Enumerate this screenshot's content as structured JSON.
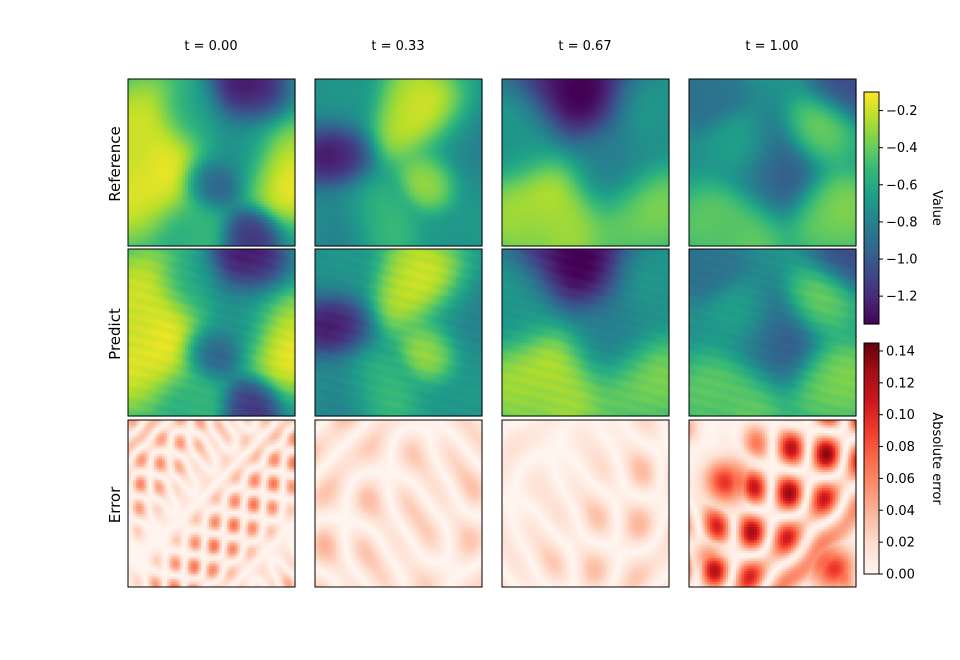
{
  "figure": {
    "column_titles": [
      "t = 0.00",
      "t = 0.33",
      "t = 0.67",
      "t = 1.00"
    ],
    "row_labels": [
      "Reference",
      "Predict",
      "Error"
    ]
  },
  "chart_data": {
    "type": "heatmap",
    "panels_grid": {
      "rows": 3,
      "cols": 4
    },
    "axes_ticks_visible": false,
    "colorbars": [
      {
        "name": "value",
        "label": "Value",
        "colormap": "viridis",
        "range": [
          -1.35,
          -0.1
        ],
        "ticks": [
          -0.2,
          -0.4,
          -0.6,
          -0.8,
          -1.0,
          -1.2
        ],
        "tick_labels": [
          "−0.2",
          "−0.4",
          "−0.6",
          "−0.8",
          "−1.0",
          "−1.2"
        ],
        "applies_to_rows": [
          "Reference",
          "Predict"
        ]
      },
      {
        "name": "error",
        "label": "Absolute error",
        "colormap": "reds",
        "range": [
          0.0,
          0.145
        ],
        "ticks": [
          0.0,
          0.02,
          0.04,
          0.06,
          0.08,
          0.1,
          0.12,
          0.14
        ],
        "tick_labels": [
          "0.00",
          "0.02",
          "0.04",
          "0.06",
          "0.08",
          "0.10",
          "0.12",
          "0.14"
        ],
        "applies_to_rows": [
          "Error"
        ]
      }
    ],
    "fields": [
      {
        "t": 0.0,
        "value_blobs": [
          {
            "cx": 0.08,
            "cy": 0.5,
            "r": 0.32,
            "v": -0.08
          },
          {
            "cx": 0.96,
            "cy": 0.55,
            "r": 0.2,
            "v": -0.1
          },
          {
            "cx": 0.7,
            "cy": 0.08,
            "r": 0.16,
            "v": -1.35
          },
          {
            "cx": 0.5,
            "cy": 0.62,
            "r": 0.12,
            "v": -1.1
          },
          {
            "cx": 0.72,
            "cy": 0.95,
            "r": 0.12,
            "v": -1.2
          },
          {
            "cx": 0.65,
            "cy": 0.4,
            "r": 0.2,
            "v": -0.75
          },
          {
            "cx": 0.4,
            "cy": 0.2,
            "r": 0.15,
            "v": -0.6
          },
          {
            "cx": 0.4,
            "cy": 0.9,
            "r": 0.15,
            "v": -0.55
          }
        ],
        "error_style": "fine",
        "error_peak": 0.07
      },
      {
        "t": 0.33,
        "value_blobs": [
          {
            "cx": 0.6,
            "cy": 0.2,
            "r": 0.2,
            "v": -0.1
          },
          {
            "cx": 0.7,
            "cy": 0.6,
            "r": 0.12,
            "v": -0.1
          },
          {
            "cx": 0.12,
            "cy": 0.45,
            "r": 0.15,
            "v": -1.3
          },
          {
            "cx": 0.2,
            "cy": 0.85,
            "r": 0.2,
            "v": -0.8
          },
          {
            "cx": 0.35,
            "cy": 0.85,
            "r": 0.15,
            "v": -0.4
          },
          {
            "cx": 0.9,
            "cy": 0.45,
            "r": 0.22,
            "v": -0.8
          },
          {
            "cx": 0.15,
            "cy": 0.1,
            "r": 0.2,
            "v": -0.75
          }
        ],
        "error_style": "smooth",
        "error_peak": 0.06
      },
      {
        "t": 0.67,
        "value_blobs": [
          {
            "cx": 0.45,
            "cy": 0.05,
            "r": 0.26,
            "v": -1.4
          },
          {
            "cx": 0.25,
            "cy": 0.8,
            "r": 0.25,
            "v": -0.2
          },
          {
            "cx": 0.85,
            "cy": 0.8,
            "r": 0.2,
            "v": -0.35
          },
          {
            "cx": 0.65,
            "cy": 0.5,
            "r": 0.2,
            "v": -0.8
          },
          {
            "cx": 0.1,
            "cy": 0.35,
            "r": 0.2,
            "v": -0.65
          },
          {
            "cx": 0.9,
            "cy": 0.15,
            "r": 0.2,
            "v": -0.7
          }
        ],
        "error_style": "smooth",
        "error_peak": 0.05
      },
      {
        "t": 1.0,
        "value_blobs": [
          {
            "cx": 0.48,
            "cy": 0.55,
            "r": 0.2,
            "v": -1.0
          },
          {
            "cx": 0.25,
            "cy": 0.88,
            "r": 0.2,
            "v": -0.35
          },
          {
            "cx": 0.88,
            "cy": 0.82,
            "r": 0.18,
            "v": -0.35
          },
          {
            "cx": 0.8,
            "cy": 0.3,
            "r": 0.15,
            "v": -0.4
          },
          {
            "cx": 0.12,
            "cy": 0.1,
            "r": 0.15,
            "v": -0.95
          },
          {
            "cx": 0.95,
            "cy": 0.05,
            "r": 0.15,
            "v": -1.1
          },
          {
            "cx": 0.3,
            "cy": 0.4,
            "r": 0.15,
            "v": -0.6
          }
        ],
        "error_style": "hot",
        "error_peak": 0.14
      }
    ]
  }
}
